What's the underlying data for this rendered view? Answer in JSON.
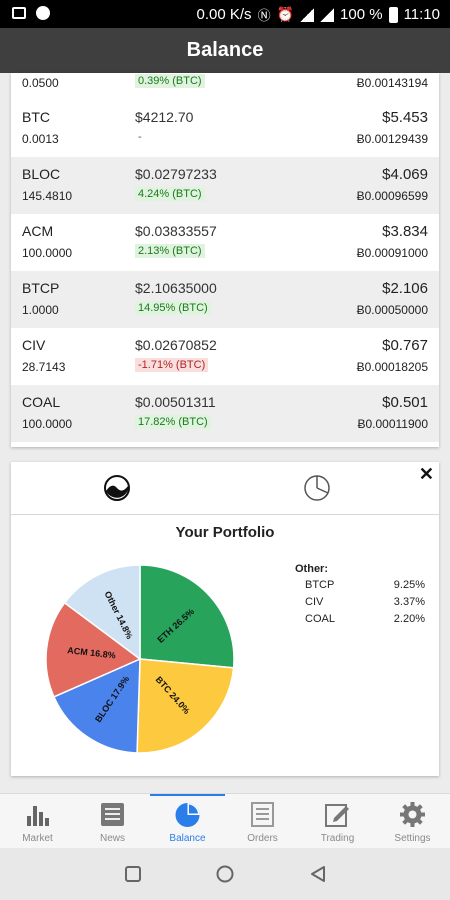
{
  "status_bar": {
    "speed": "0.00 K/s",
    "battery": "100 %",
    "time": "11:10"
  },
  "app_bar": {
    "title": "Balance"
  },
  "table": {
    "partial_row": {
      "amount": "0.0500",
      "change": "0.39% (BTC)",
      "btc_value": "Ƀ0.00143194"
    },
    "rows": [
      {
        "symbol": "BTC",
        "amount": "0.0013",
        "price": "$4212.70",
        "change": "-",
        "value": "$5.453",
        "btc_value": "Ƀ0.00129439"
      },
      {
        "symbol": "BLOC",
        "amount": "145.4810",
        "price": "$0.02797233",
        "change": "4.24% (BTC)",
        "value": "$4.069",
        "btc_value": "Ƀ0.00096599"
      },
      {
        "symbol": "ACM",
        "amount": "100.0000",
        "price": "$0.03833557",
        "change": "2.13% (BTC)",
        "value": "$3.834",
        "btc_value": "Ƀ0.00091000"
      },
      {
        "symbol": "BTCP",
        "amount": "1.0000",
        "price": "$2.10635000",
        "change": "14.95% (BTC)",
        "value": "$2.106",
        "btc_value": "Ƀ0.00050000"
      },
      {
        "symbol": "CIV",
        "amount": "28.7143",
        "price": "$0.02670852",
        "change": "-1.71% (BTC)",
        "value": "$0.767",
        "btc_value": "Ƀ0.00018205"
      },
      {
        "symbol": "COAL",
        "amount": "100.0000",
        "price": "$0.00501311",
        "change": "17.82% (BTC)",
        "value": "$0.501",
        "btc_value": "Ƀ0.00011900"
      }
    ]
  },
  "portfolio": {
    "title": "Your Portfolio",
    "close_label": "✕",
    "other": {
      "heading": "Other:",
      "items": [
        {
          "name": "BTCP",
          "pct": "9.25%"
        },
        {
          "name": "CIV",
          "pct": "3.37%"
        },
        {
          "name": "COAL",
          "pct": "2.20%"
        }
      ]
    }
  },
  "chart_data": {
    "type": "pie",
    "title": "Your Portfolio",
    "slices": [
      {
        "label": "ETH 26.5%",
        "value": 26.5,
        "color": "#27a35c"
      },
      {
        "label": "BTC 24.0%",
        "value": 24.0,
        "color": "#fdc93e"
      },
      {
        "label": "BLOC 17.9%",
        "value": 17.9,
        "color": "#4b83ec"
      },
      {
        "label": "ACM 16.8%",
        "value": 16.8,
        "color": "#e26a5f"
      },
      {
        "label": "Other 14.8%",
        "value": 14.8,
        "color": "#cfe2f3"
      }
    ]
  },
  "bottom_nav": [
    {
      "label": "Market",
      "icon": "bar-chart-icon"
    },
    {
      "label": "News",
      "icon": "newspaper-icon"
    },
    {
      "label": "Balance",
      "icon": "pie-chart-icon"
    },
    {
      "label": "Orders",
      "icon": "list-icon"
    },
    {
      "label": "Trading",
      "icon": "edit-icon"
    },
    {
      "label": "Settings",
      "icon": "gear-icon"
    }
  ]
}
